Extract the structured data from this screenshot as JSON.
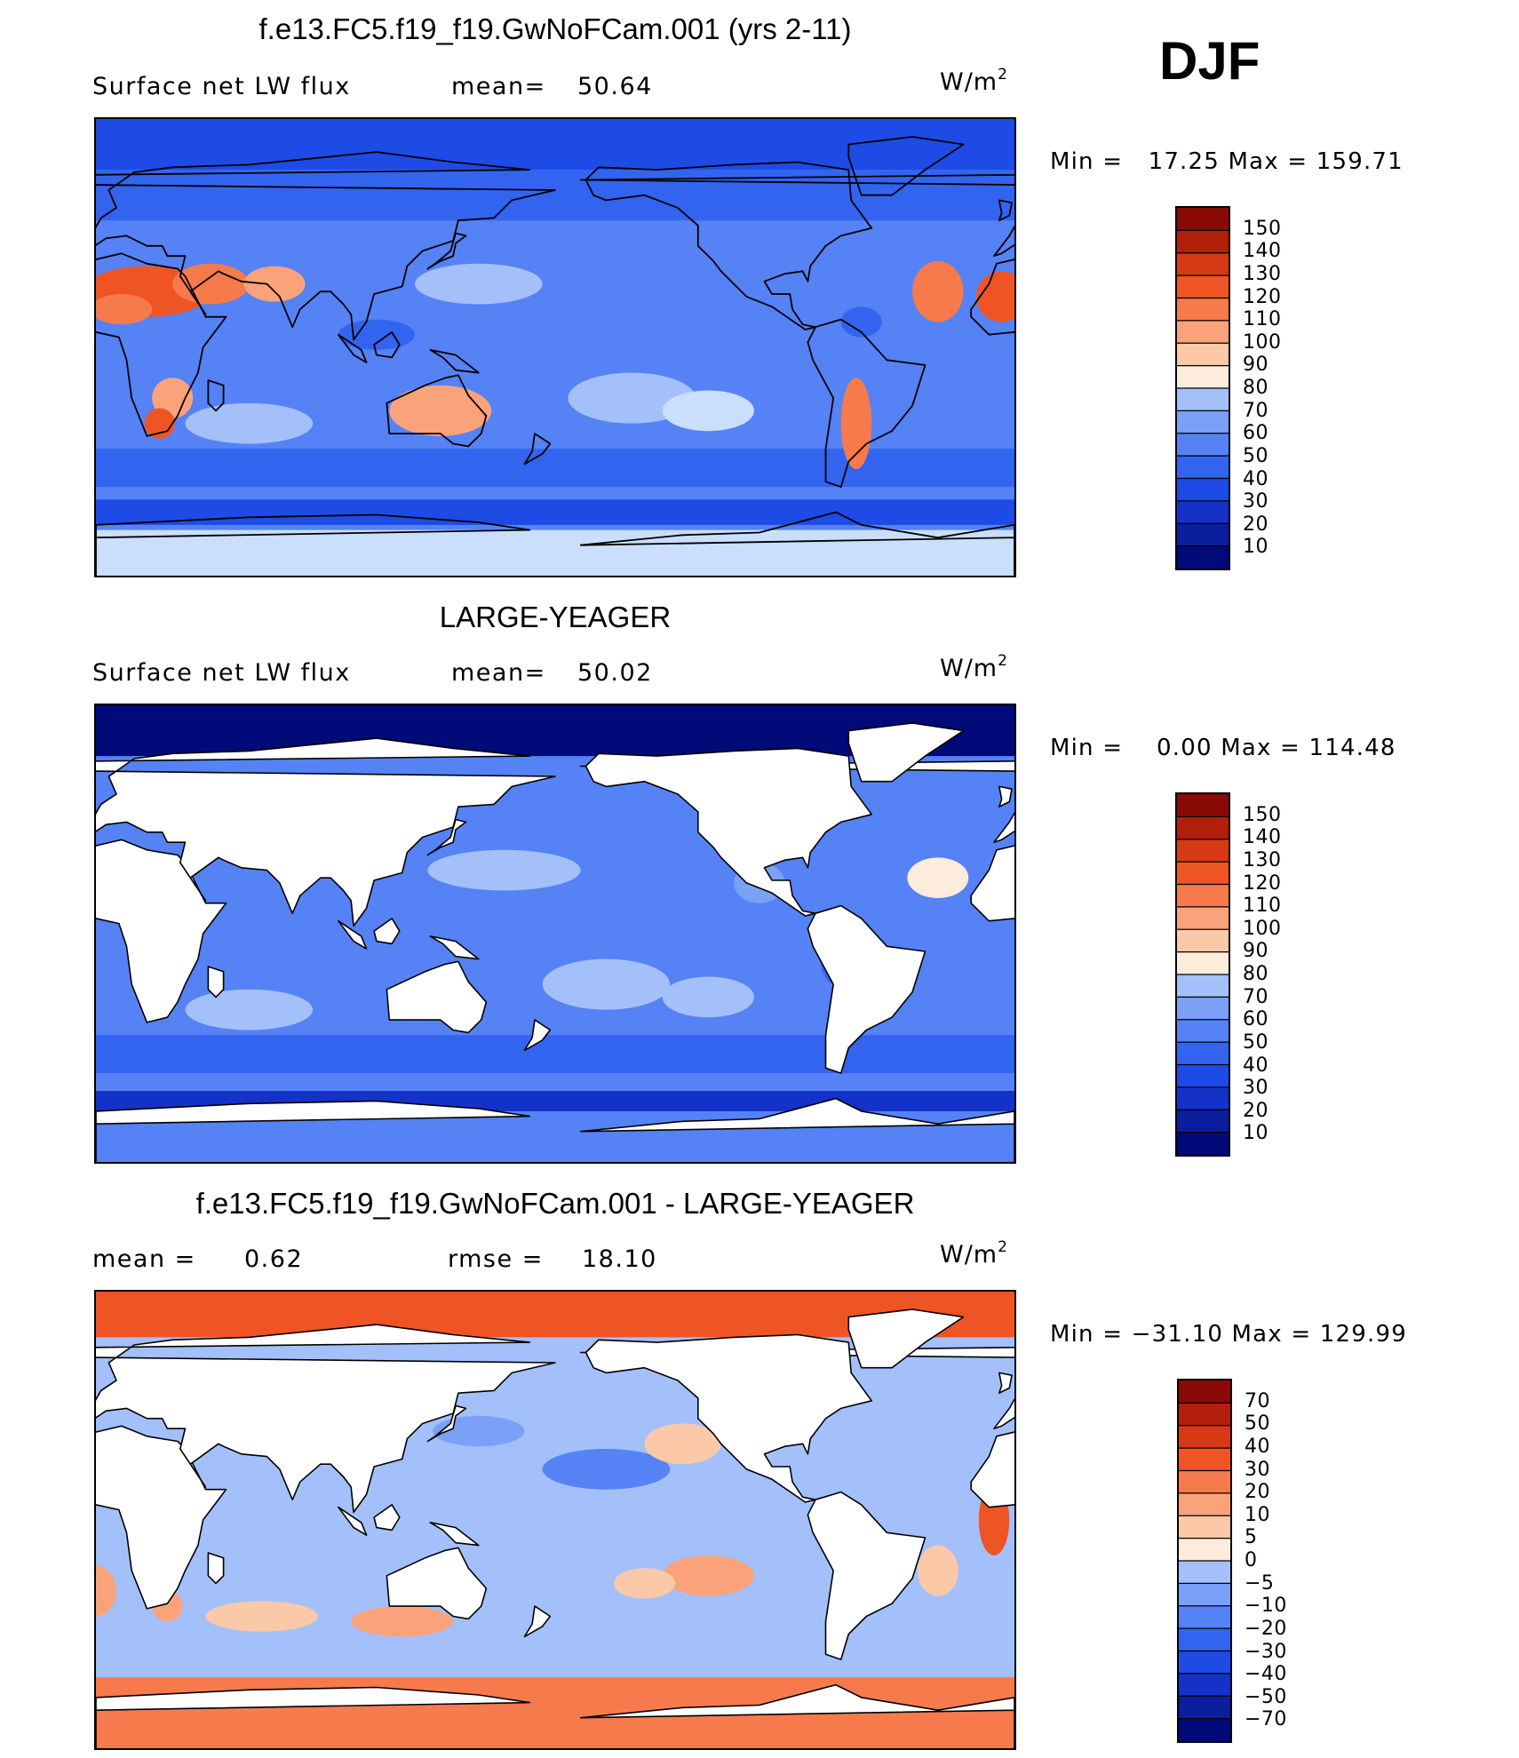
{
  "season": "DJF",
  "units_base": "W/m",
  "units_exp": "2",
  "panels": [
    {
      "title": "f.e13.FC5.f19_f19.GwNoFCam.001 (yrs 2-11)",
      "field_label": "Surface net LW flux",
      "stat1_label": "mean=",
      "stat1_value": "50.64",
      "stat2_label": "",
      "stat2_value": "",
      "min_max": "Min =   17.25 Max = 159.71",
      "colorbar_levels": [
        "150",
        "140",
        "130",
        "120",
        "110",
        "100",
        "90",
        "80",
        "70",
        "60",
        "50",
        "40",
        "30",
        "20",
        "10"
      ],
      "land_masked": false
    },
    {
      "title": "LARGE-YEAGER",
      "field_label": "Surface net LW flux",
      "stat1_label": "mean=",
      "stat1_value": "50.02",
      "stat2_label": "",
      "stat2_value": "",
      "min_max": "Min =    0.00 Max = 114.48",
      "colorbar_levels": [
        "150",
        "140",
        "130",
        "120",
        "110",
        "100",
        "90",
        "80",
        "70",
        "60",
        "50",
        "40",
        "30",
        "20",
        "10"
      ],
      "land_masked": true
    },
    {
      "title": "f.e13.FC5.f19_f19.GwNoFCam.001 - LARGE-YEAGER",
      "field_label": "",
      "stat1_label": "mean =",
      "stat1_value": "0.62",
      "stat2_label": "rmse =",
      "stat2_value": "18.10",
      "min_max": "Min = −31.10 Max = 129.99",
      "colorbar_levels": [
        "70",
        "50",
        "40",
        "30",
        "20",
        "10",
        "5",
        "0",
        "−5",
        "−10",
        "−20",
        "−30",
        "−40",
        "−50",
        "−70"
      ],
      "land_masked": true
    }
  ],
  "colors": {
    "bins": [
      "#000a78",
      "#0a1e9e",
      "#1432c8",
      "#1e4be6",
      "#3264f0",
      "#5582f5",
      "#7ba0f8",
      "#a3c0fb",
      "#cadefd",
      "#fdebdc",
      "#fcc9a8",
      "#faa37a",
      "#f77a4c",
      "#ef5425",
      "#d63a14",
      "#b21f0a",
      "#8a0a05"
    ],
    "land": "#ffffff",
    "coast": "#000000"
  },
  "map_data": {
    "projection": "cylindrical-equidistant",
    "lon_range": [
      0,
      360
    ],
    "lat_range": [
      -90,
      90
    ],
    "center_lon": 180
  }
}
